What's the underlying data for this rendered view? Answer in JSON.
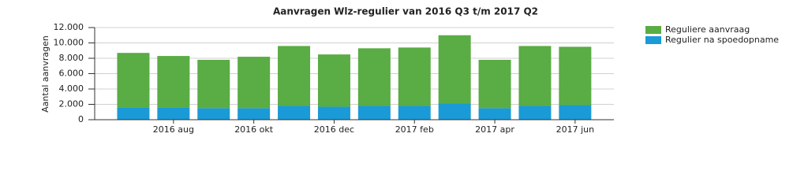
{
  "chart_data": {
    "type": "stacked_bar",
    "title": "Aanvragen Wlz-regulier van 2016 Q3 t/m 2017 Q2",
    "y_label": "Aantal aanvragen",
    "categories": [
      null,
      "2016 aug",
      null,
      "2016 okt",
      null,
      "2016 dec",
      null,
      "2017 feb",
      null,
      "2017 apr",
      null,
      "2017 jun"
    ],
    "series": [
      {
        "name": "Regulier na spoedopname",
        "color": "#1a9ad6",
        "values": [
          1600,
          1600,
          1500,
          1500,
          1800,
          1700,
          1800,
          1800,
          2100,
          1500,
          1800,
          1900
        ]
      },
      {
        "name": "Reguliere aanvraag",
        "color": "#5aac44",
        "values": [
          7100,
          6700,
          6300,
          6700,
          7800,
          6800,
          7500,
          7600,
          8900,
          6300,
          7800,
          7600
        ]
      }
    ],
    "ylim": [
      0,
      12000
    ],
    "yticks": [
      0,
      {
        "value": 2000,
        "label": "2.000"
      },
      {
        "value": 4000,
        "label": "4.000"
      },
      {
        "value": 6000,
        "label": "6.000"
      },
      {
        "value": 8000,
        "label": "8.000"
      },
      {
        "value": 10000,
        "label": "10.000"
      },
      {
        "value": 12000,
        "label": "12.000"
      }
    ],
    "grid": true,
    "legend": "right"
  }
}
